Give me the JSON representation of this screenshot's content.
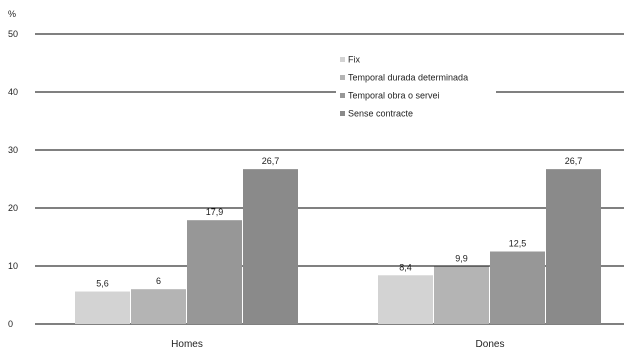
{
  "chart_data": {
    "type": "bar",
    "ylabel": "%",
    "ylim": [
      0,
      50
    ],
    "yticks": [
      0,
      10,
      20,
      30,
      40,
      50
    ],
    "grid": true,
    "legend_position": "top-right",
    "categories": [
      "Homes",
      "Dones"
    ],
    "series": [
      {
        "name": "Fix",
        "color": "#d3d3d3",
        "values": [
          5.6,
          8.4
        ],
        "labels": [
          "5,6",
          "8,4"
        ]
      },
      {
        "name": "Temporal durada determinada",
        "color": "#b4b4b4",
        "values": [
          6.0,
          9.9
        ],
        "labels": [
          "6",
          "9,9"
        ]
      },
      {
        "name": "Temporal obra o servei",
        "color": "#979797",
        "values": [
          17.9,
          12.5
        ],
        "labels": [
          "17,9",
          "12,5"
        ]
      },
      {
        "name": "Sense contracte",
        "color": "#8a8a8a",
        "values": [
          26.7,
          26.7
        ],
        "labels": [
          "26,7",
          "26,7"
        ]
      }
    ]
  }
}
